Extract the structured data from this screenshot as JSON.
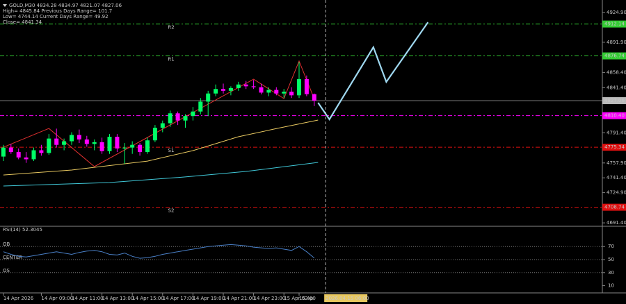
{
  "chart_data": {
    "type": "candlestick",
    "header": [
      "GOLD,M30  4834.28 4834.97 4821.07 4827.06",
      "High= 4845.84    Previous Days Range= 101.7",
      "Low= 4744.14    Current Days Range= 49.92",
      "Close= 4841.34"
    ],
    "xlim": [
      0.55,
      80
    ],
    "ylim": [
      4688.4,
      4938.8
    ],
    "yticks": [
      {
        "value": 4924.9,
        "label": "4924.90"
      },
      {
        "value": 4891.9,
        "label": "4891.90"
      },
      {
        "value": 4858.4,
        "label": "4858.40"
      },
      {
        "value": 4841.4,
        "label": "4841.40"
      },
      {
        "value": 4791.4,
        "label": "4791.40"
      },
      {
        "value": 4757.9,
        "label": "4757.90"
      },
      {
        "value": 4741.4,
        "label": "4741.40"
      },
      {
        "value": 4724.9,
        "label": "4724.90"
      },
      {
        "value": 4691.4,
        "label": "4691.40"
      }
    ],
    "xticks": [
      {
        "value": 1,
        "label": "14 Apr 2026"
      },
      {
        "value": 6,
        "label": "14 Apr 09:00"
      },
      {
        "value": 10,
        "label": "14 Apr 11:00"
      },
      {
        "value": 14,
        "label": "14 Apr 13:00"
      },
      {
        "value": 18,
        "label": "14 Apr 15:00"
      },
      {
        "value": 22,
        "label": "14 Apr 17:00"
      },
      {
        "value": 26,
        "label": "14 Apr 19:00"
      },
      {
        "value": 30,
        "label": "14 Apr 21:00"
      },
      {
        "value": 34,
        "label": "14 Apr 23:00"
      },
      {
        "value": 38,
        "label": "15 Apr 02:00"
      },
      {
        "value": 40,
        "label": "15 Ap"
      }
    ],
    "time_marker": {
      "value": 43.5,
      "label": "2026.04.15 06:00",
      "color": "#e8c860"
    },
    "up_color": "#00ff66",
    "down_color": "#ff00ff",
    "open": [
      4765,
      4775,
      4770,
      4764,
      4762,
      4772,
      4769,
      4785,
      4778,
      4782,
      4789,
      4784,
      4779,
      4781,
      4771,
      4787,
      4774,
      4775,
      4778,
      4770,
      4783,
      4797,
      4802,
      4813,
      4805,
      4810,
      4815,
      4826,
      4835,
      4840,
      4838,
      4841,
      4845,
      4843,
      4842,
      4836,
      4839,
      4835,
      4837,
      4833,
      4851,
      4834.28
    ],
    "high": [
      4778,
      4779,
      4774,
      4770,
      4775,
      4778,
      4790,
      4796,
      4785,
      4792,
      4795,
      4788,
      4784,
      4786,
      4790,
      4790,
      4780,
      4782,
      4780,
      4786,
      4800,
      4805,
      4816,
      4815,
      4812,
      4820,
      4830,
      4838,
      4845,
      4846,
      4843,
      4848,
      4849,
      4850,
      4846,
      4842,
      4842,
      4840,
      4842,
      4870,
      4855,
      4834.97
    ],
    "low": [
      4760,
      4768,
      4762,
      4758,
      4760,
      4766,
      4767,
      4775,
      4772,
      4778,
      4780,
      4776,
      4772,
      4768,
      4768,
      4770,
      4757,
      4768,
      4766,
      4768,
      4781,
      4792,
      4798,
      4800,
      4797,
      4805,
      4812,
      4810,
      4832,
      4835,
      4833,
      4838,
      4840,
      4840,
      4834,
      4832,
      4833,
      4830,
      4830,
      4830,
      4832,
      4821.07
    ],
    "close": [
      4775,
      4770,
      4764,
      4762,
      4772,
      4769,
      4785,
      4778,
      4782,
      4789,
      4784,
      4779,
      4781,
      4771,
      4787,
      4774,
      4775,
      4778,
      4770,
      4783,
      4797,
      4802,
      4813,
      4805,
      4810,
      4815,
      4826,
      4835,
      4840,
      4838,
      4841,
      4845,
      4843,
      4842,
      4836,
      4839,
      4835,
      4837,
      4833,
      4851,
      4834.28,
      4827.06
    ],
    "levels": [
      {
        "name": "R2",
        "value": 4912.14,
        "label": "4912.14",
        "color": "#33cc33"
      },
      {
        "name": "R1",
        "value": 4876.74,
        "label": "4876.74",
        "color": "#33cc33"
      },
      {
        "value": 4810.4,
        "label": "4810.40",
        "color": "#ff00ff"
      },
      {
        "name": "S1",
        "value": 4775.34,
        "label": "4775.34",
        "color": "#e01010"
      },
      {
        "name": "S2",
        "value": 4708.74,
        "label": "4708.74",
        "color": "#e01010"
      }
    ],
    "current_price": 4827.06,
    "lines": [
      {
        "color": "#e8c860",
        "x": [
          1,
          10,
          20,
          26,
          32,
          37,
          42.5
        ],
        "values": [
          4744.6,
          4750,
          4760,
          4771.6,
          4787,
          4796,
          4805.5
        ]
      },
      {
        "color": "#40c8d8",
        "x": [
          1,
          15,
          25,
          33,
          42.5
        ],
        "values": [
          4732.3,
          4736.2,
          4742.4,
          4748.5,
          4758.5
        ]
      },
      {
        "color": "#e03030",
        "x": [
          1,
          7,
          13,
          34,
          38,
          40,
          42
        ],
        "values": [
          4775.4,
          4796.2,
          4753.9,
          4850.9,
          4829.4,
          4871,
          4829
        ]
      },
      {
        "color": "#9fd8f0",
        "x": [
          42.5,
          44,
          49.8,
          51.5,
          57
        ],
        "values": [
          4824.8,
          4806.3,
          4886.4,
          4847.9,
          4914.1
        ]
      }
    ],
    "rsi": {
      "title": "RSI(14) 52.3045",
      "ylim": [
        0,
        100
      ],
      "yticks": [
        70,
        50,
        30,
        10
      ],
      "levels": [
        {
          "label": "OB",
          "value": 70
        },
        {
          "label": "CENTER",
          "value": 50
        },
        {
          "label": "OS",
          "value": 30
        }
      ],
      "color": "#4a80c8",
      "values": [
        62,
        58,
        55,
        54,
        56,
        58,
        60,
        62,
        60,
        58,
        61,
        63,
        64,
        62,
        58,
        57,
        60,
        55,
        52,
        53,
        55,
        58,
        60,
        62,
        64,
        66,
        68,
        70,
        71,
        72,
        73,
        72,
        71,
        69,
        68,
        67,
        68,
        66,
        64,
        70,
        62,
        52.3045
      ]
    }
  }
}
